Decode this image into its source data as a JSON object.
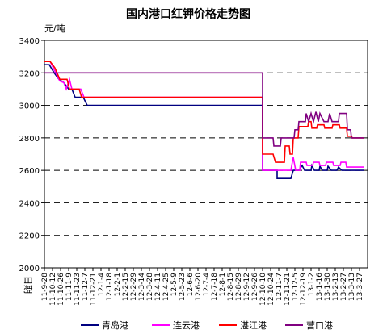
{
  "chart_data": {
    "type": "line",
    "title": "国内港口红钾价格走势图",
    "ylabel": "元/吨",
    "xlabel": "日期",
    "ylim": [
      2000,
      3400
    ],
    "yticks": [
      2000,
      2200,
      2400,
      2600,
      2800,
      3000,
      3200,
      3400
    ],
    "grid": "horizontal dashed",
    "legend_position": "bottom",
    "x_tick_labels": [
      "11-9-28",
      "11-10-12",
      "11-10-26",
      "11-11-9",
      "11-11-23",
      "11-12-7",
      "11-12-21",
      "12-1-4",
      "12-1-18",
      "12-2-1",
      "12-2-15",
      "12-2-29",
      "12-3-14",
      "12-3-28",
      "12-4-11",
      "12-4-25",
      "12-5-9",
      "12-5-23",
      "12-6-6",
      "12-6-20",
      "12-7-4",
      "12-7-18",
      "12-8-1",
      "12-8-15",
      "12-8-29",
      "12-9-12",
      "12-9-26",
      "12-10-10",
      "12-10-24",
      "12-11-7",
      "12-11-21",
      "12-12-5",
      "12-12-19",
      "13-1-2",
      "13-1-16",
      "13-1-30",
      "13-2-13",
      "13-2-27",
      "13-3-13",
      "13-3-27"
    ],
    "series": [
      {
        "name": "青岛港",
        "color": "#000080",
        "points": [
          [
            0,
            3250
          ],
          [
            0.6,
            3250
          ],
          [
            1.2,
            3200
          ],
          [
            1.8,
            3160
          ],
          [
            2.4,
            3140
          ],
          [
            3.0,
            3100
          ],
          [
            3.4,
            3100
          ],
          [
            3.8,
            3050
          ],
          [
            4.8,
            3050
          ],
          [
            5.3,
            3000
          ],
          [
            27.0,
            3000
          ],
          [
            27.0,
            2600
          ],
          [
            28.8,
            2600
          ],
          [
            28.8,
            2550
          ],
          [
            30.5,
            2550
          ],
          [
            30.8,
            2600
          ],
          [
            31.5,
            2600
          ],
          [
            31.9,
            2630
          ],
          [
            32.2,
            2600
          ],
          [
            33.0,
            2600
          ],
          [
            33.1,
            2630
          ],
          [
            33.4,
            2600
          ],
          [
            34.0,
            2600
          ],
          [
            34.1,
            2625
          ],
          [
            34.4,
            2600
          ],
          [
            35.0,
            2600
          ],
          [
            35.1,
            2625
          ],
          [
            35.5,
            2600
          ],
          [
            36.2,
            2600
          ],
          [
            36.4,
            2620
          ],
          [
            36.8,
            2600
          ],
          [
            39.5,
            2600
          ]
        ]
      },
      {
        "name": "连云港",
        "color": "#ff00ff",
        "points": [
          [
            0,
            3270
          ],
          [
            0.7,
            3270
          ],
          [
            1.3,
            3210
          ],
          [
            1.9,
            3150
          ],
          [
            2.4,
            3140
          ],
          [
            2.7,
            3100
          ],
          [
            3.1,
            3160
          ],
          [
            3.4,
            3100
          ],
          [
            4.5,
            3100
          ],
          [
            4.9,
            3050
          ],
          [
            27.0,
            3050
          ],
          [
            27.0,
            2600
          ],
          [
            30.5,
            2600
          ],
          [
            30.8,
            2680
          ],
          [
            31.1,
            2600
          ],
          [
            31.6,
            2600
          ],
          [
            31.7,
            2650
          ],
          [
            32.4,
            2650
          ],
          [
            32.5,
            2630
          ],
          [
            33.2,
            2630
          ],
          [
            33.3,
            2650
          ],
          [
            34.0,
            2650
          ],
          [
            34.1,
            2630
          ],
          [
            34.8,
            2630
          ],
          [
            34.9,
            2650
          ],
          [
            35.7,
            2650
          ],
          [
            35.8,
            2630
          ],
          [
            36.6,
            2630
          ],
          [
            36.7,
            2650
          ],
          [
            37.3,
            2650
          ],
          [
            37.4,
            2620
          ],
          [
            39.5,
            2620
          ]
        ]
      },
      {
        "name": "湛江港",
        "color": "#ff0000",
        "points": [
          [
            0,
            3270
          ],
          [
            0.7,
            3270
          ],
          [
            1.3,
            3230
          ],
          [
            1.9,
            3160
          ],
          [
            2.8,
            3160
          ],
          [
            3.1,
            3100
          ],
          [
            4.3,
            3100
          ],
          [
            4.6,
            3050
          ],
          [
            27.0,
            3050
          ],
          [
            27.0,
            2700
          ],
          [
            28.3,
            2700
          ],
          [
            28.6,
            2650
          ],
          [
            29.7,
            2650
          ],
          [
            29.8,
            2750
          ],
          [
            30.3,
            2750
          ],
          [
            30.4,
            2700
          ],
          [
            30.7,
            2700
          ],
          [
            30.8,
            2800
          ],
          [
            31.4,
            2800
          ],
          [
            31.5,
            2870
          ],
          [
            32.6,
            2870
          ],
          [
            32.7,
            2900
          ],
          [
            33.0,
            2900
          ],
          [
            33.1,
            2860
          ],
          [
            33.7,
            2860
          ],
          [
            33.8,
            2880
          ],
          [
            34.6,
            2880
          ],
          [
            34.7,
            2860
          ],
          [
            35.6,
            2860
          ],
          [
            35.7,
            2880
          ],
          [
            36.5,
            2880
          ],
          [
            36.6,
            2860
          ],
          [
            37.4,
            2860
          ],
          [
            37.5,
            2810
          ],
          [
            38.0,
            2810
          ],
          [
            38.1,
            2800
          ],
          [
            39.5,
            2800
          ]
        ]
      },
      {
        "name": "营口港",
        "color": "#800080",
        "points": [
          [
            0,
            3200
          ],
          [
            27.0,
            3200
          ],
          [
            27.0,
            2800
          ],
          [
            28.3,
            2800
          ],
          [
            28.4,
            2750
          ],
          [
            29.2,
            2750
          ],
          [
            29.3,
            2800
          ],
          [
            30.9,
            2800
          ],
          [
            31.0,
            2850
          ],
          [
            31.4,
            2850
          ],
          [
            31.5,
            2900
          ],
          [
            32.3,
            2900
          ],
          [
            32.4,
            2950
          ],
          [
            32.7,
            2900
          ],
          [
            33.0,
            2950
          ],
          [
            33.3,
            2900
          ],
          [
            33.6,
            2960
          ],
          [
            33.9,
            2900
          ],
          [
            34.1,
            2950
          ],
          [
            34.6,
            2900
          ],
          [
            35.1,
            2900
          ],
          [
            35.3,
            2950
          ],
          [
            35.6,
            2900
          ],
          [
            36.4,
            2900
          ],
          [
            36.5,
            2950
          ],
          [
            37.4,
            2950
          ],
          [
            37.5,
            2850
          ],
          [
            37.9,
            2850
          ],
          [
            38.0,
            2800
          ],
          [
            39.5,
            2800
          ]
        ]
      }
    ]
  }
}
